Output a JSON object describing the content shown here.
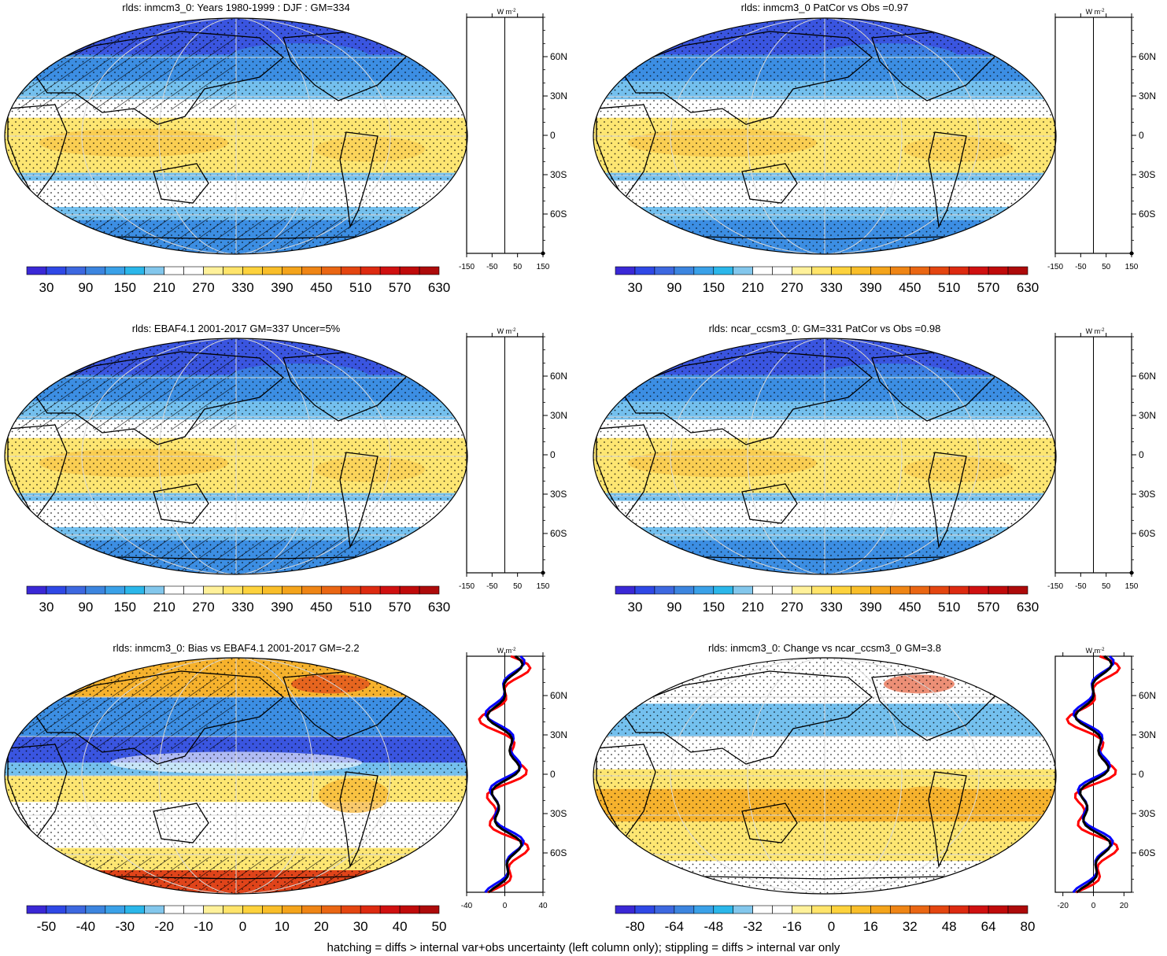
{
  "panels": [
    {
      "id": "p1",
      "title": "rlds: inmcm3_0: Years 1980-1999 : DJF : GM=334",
      "kind": "clim",
      "hatch": true
    },
    {
      "id": "p2",
      "title": "rlds: inmcm3_0 PatCor vs Obs =0.97",
      "kind": "clim",
      "hatch": false
    },
    {
      "id": "p3",
      "title": "rlds: EBAF4.1 2001-2017 GM=337 Uncer=5%",
      "kind": "clim",
      "hatch": true
    },
    {
      "id": "p4",
      "title": "rlds: ncar_ccsm3_0: GM=331 PatCor vs Obs =0.98",
      "kind": "clim",
      "hatch": false
    },
    {
      "id": "p5",
      "title": "rlds: inmcm3_0: Bias vs EBAF4.1 2001-2017 GM=-2.2",
      "kind": "bias",
      "hatch": true
    },
    {
      "id": "p6",
      "title": "rlds: inmcm3_0: Change vs ncar_ccsm3_0 GM=3.8",
      "kind": "change",
      "hatch": false
    }
  ],
  "zonal": {
    "units": "W m",
    "units_sup": "-2",
    "lat_labels": [
      "60N",
      "30N",
      "0",
      "30S",
      "60S"
    ],
    "clim_xticks": [
      "-150",
      "-50",
      "50",
      "150"
    ],
    "bias_xticks": [
      "-40",
      "0",
      "40"
    ],
    "change_xticks": [
      "-20",
      "0",
      "20"
    ]
  },
  "colorbars": {
    "clim": {
      "labels": [
        "30",
        "90",
        "150",
        "210",
        "270",
        "330",
        "390",
        "450",
        "510",
        "570",
        "630"
      ],
      "colors": [
        "#3a28d6",
        "#2f48e6",
        "#3d68e0",
        "#3c85df",
        "#3aa1e8",
        "#2bb7ea",
        "#83c7ec",
        "#ffffff",
        "#ffffff",
        "#fff19a",
        "#ffe46a",
        "#fdd23c",
        "#f9be29",
        "#f4a41b",
        "#ef8515",
        "#ea6613",
        "#e44510",
        "#dd2a10",
        "#d01010",
        "#c00a0a",
        "#ad0a0a"
      ]
    },
    "bias": {
      "labels": [
        "-50",
        "-40",
        "-30",
        "-20",
        "-10",
        "0",
        "10",
        "20",
        "30",
        "40",
        "50"
      ],
      "colors": [
        "#3a28d6",
        "#2f48e6",
        "#3d68e0",
        "#3c85df",
        "#3aa1e8",
        "#2bb7ea",
        "#83c7ec",
        "#ffffff",
        "#ffffff",
        "#fff19a",
        "#ffe46a",
        "#fdd23c",
        "#f9be29",
        "#f4a41b",
        "#ef8515",
        "#ea6613",
        "#e44510",
        "#dd2a10",
        "#d01010",
        "#c00a0a",
        "#ad0a0a"
      ]
    },
    "change": {
      "labels": [
        "-80",
        "-64",
        "-48",
        "-32",
        "-16",
        "0",
        "16",
        "32",
        "48",
        "64",
        "80"
      ],
      "colors": [
        "#3a28d6",
        "#2f48e6",
        "#3d68e0",
        "#3c85df",
        "#3aa1e8",
        "#2bb7ea",
        "#83c7ec",
        "#ffffff",
        "#ffffff",
        "#fff19a",
        "#ffe46a",
        "#fdd23c",
        "#f9be29",
        "#f4a41b",
        "#ef8515",
        "#ea6613",
        "#e44510",
        "#dd2a10",
        "#d01010",
        "#c00a0a",
        "#ad0a0a"
      ]
    }
  },
  "map_colors": {
    "land_outline": "#000000",
    "dark_blue": "#3a55e0",
    "blue": "#3c8ee3",
    "light_blue": "#74c0ee",
    "white": "#ffffff",
    "yellow": "#fde672",
    "orange": "#f6b22d",
    "red": "#e0441a"
  },
  "zonal_series_colors": {
    "black": "#000000",
    "red": "#ff0000",
    "blue": "#0000ff"
  },
  "footnote": "hatching = diffs > internal var+obs uncertainty (left column only); stippling = diffs > internal var only"
}
